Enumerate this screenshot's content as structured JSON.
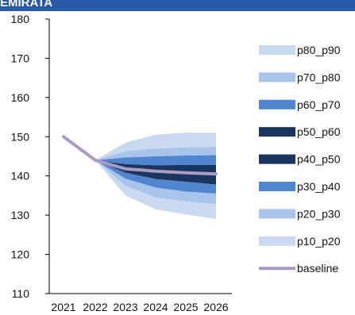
{
  "header": {
    "title": "EMIRATA"
  },
  "colors": {
    "p10_p20": "#c9d9f0",
    "p20_p30": "#a8c4ea",
    "p30_p40": "#4f86cf",
    "p40_p50": "#1c355e",
    "p50_p60": "#1c355e",
    "p60_p70": "#4f86cf",
    "p70_p80": "#a8c4ea",
    "p80_p90": "#c9d9f0",
    "baseline": "#a99bc4",
    "header": "#2a58a8"
  },
  "chart_data": {
    "type": "area",
    "title": "",
    "xlabel": "",
    "ylabel": "",
    "x": [
      "2021",
      "2022",
      "2023",
      "2024",
      "2025",
      "2026"
    ],
    "ylim": [
      110,
      180
    ],
    "yticks": [
      110,
      120,
      130,
      140,
      150,
      160,
      170,
      180
    ],
    "legend_position": "right",
    "grid": false,
    "fan_x": [
      "2022",
      "2023",
      "2024",
      "2025",
      "2026"
    ],
    "bounds": {
      "p10": [
        144,
        135,
        131.5,
        130.2,
        129
      ],
      "p20": [
        144,
        137.5,
        134.5,
        133.5,
        132.8
      ],
      "p30": [
        144,
        139.3,
        137,
        136,
        135.5
      ],
      "p40": [
        144,
        140.8,
        139.2,
        138.5,
        137.8
      ],
      "p60": [
        144,
        143,
        142.7,
        142.8,
        142.8
      ],
      "p70": [
        144,
        144.7,
        145,
        145.2,
        145.3
      ],
      "p80": [
        144,
        146.3,
        147,
        147.3,
        147.4
      ],
      "p90": [
        144,
        148.5,
        150.5,
        151,
        151
      ]
    },
    "series": [
      {
        "name": "p80_p90",
        "lower": "p80",
        "upper": "p90"
      },
      {
        "name": "p70_p80",
        "lower": "p70",
        "upper": "p80"
      },
      {
        "name": "p60_p70",
        "lower": "p60",
        "upper": "p70"
      },
      {
        "name": "p50_p60",
        "lower": "p50",
        "upper": "p60"
      },
      {
        "name": "p40_p50",
        "lower": "p40",
        "upper": "p50"
      },
      {
        "name": "p30_p40",
        "lower": "p30",
        "upper": "p40"
      },
      {
        "name": "p20_p30",
        "lower": "p20",
        "upper": "p30"
      },
      {
        "name": "p10_p20",
        "lower": "p10",
        "upper": "p20"
      },
      {
        "name": "baseline",
        "type": "line",
        "x": [
          "2021",
          "2022",
          "2023",
          "2024",
          "2025",
          "2026"
        ],
        "values": [
          150,
          144,
          141.8,
          141.2,
          140.8,
          140.5
        ]
      }
    ]
  }
}
